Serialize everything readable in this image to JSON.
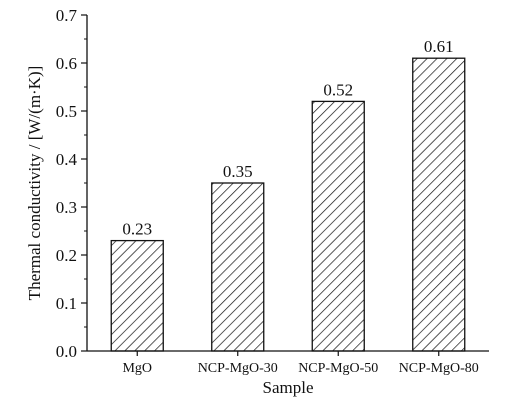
{
  "chart_data": {
    "type": "bar",
    "categories": [
      "MgO",
      "NCP-MgO-30",
      "NCP-MgO-50",
      "NCP-MgO-80"
    ],
    "values": [
      0.23,
      0.35,
      0.52,
      0.61
    ],
    "data_labels": [
      "0.23",
      "0.35",
      "0.52",
      "0.61"
    ],
    "xlabel": "Sample",
    "ylabel": "Thermal conductivity / [W/(m·K)]",
    "ylim": [
      0.0,
      0.7
    ],
    "yticks": [
      0.0,
      0.1,
      0.2,
      0.3,
      0.4,
      0.5,
      0.6,
      0.7
    ],
    "ytick_labels": [
      "0.0",
      "0.1",
      "0.2",
      "0.3",
      "0.4",
      "0.5",
      "0.6",
      "0.7"
    ],
    "bar_fill": "diagonal-hatch",
    "bar_color": "#111111",
    "grid": false,
    "legend": false
  }
}
